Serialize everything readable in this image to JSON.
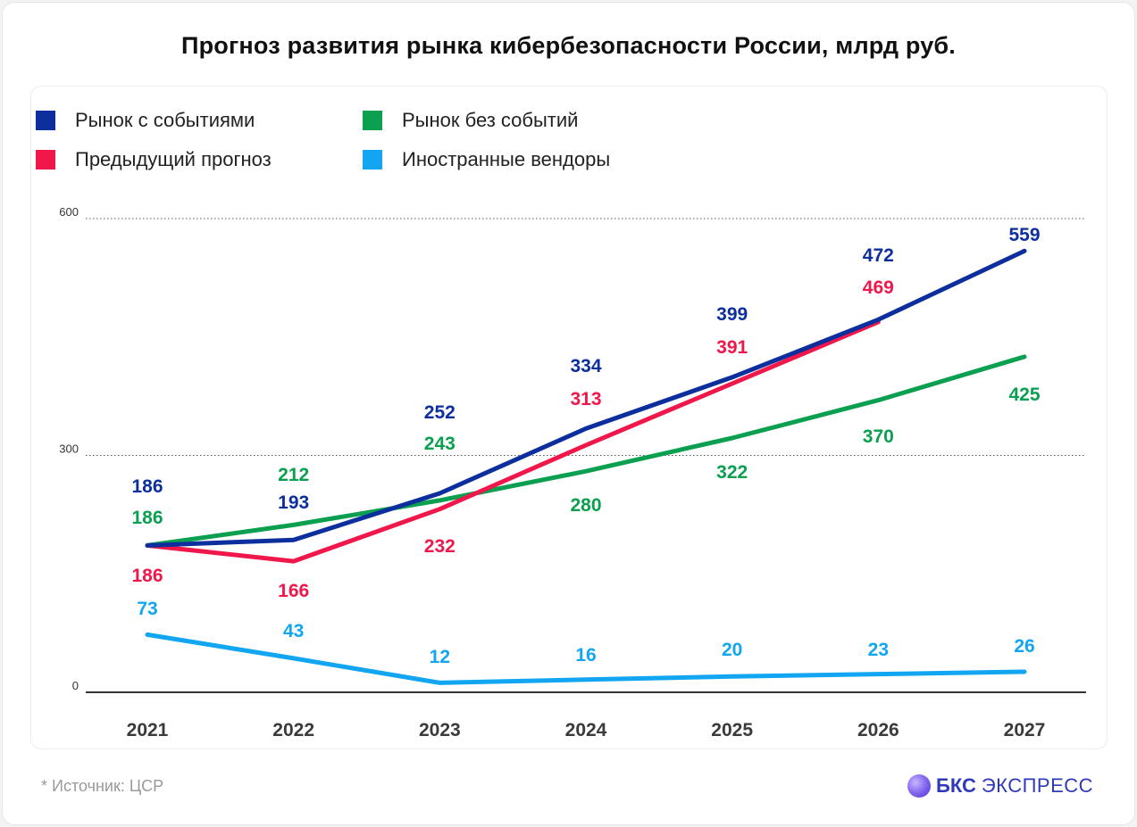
{
  "title": "Прогноз развития рынка кибербезопасности России, млрд руб.",
  "source": "*  Источник: ЦСР",
  "brand": {
    "bold": "БКС",
    "light": "ЭКСПРЕСС"
  },
  "legend": [
    {
      "label": "Рынок с событиями",
      "color": "#0d2f9e"
    },
    {
      "label": "Рынок без событий",
      "color": "#0aa04f"
    },
    {
      "label": "Предыдущий прогноз",
      "color": "#f0174b"
    },
    {
      "label": "Иностранные вендоры",
      "color": "#12a6f2"
    }
  ],
  "chart_data": {
    "type": "line",
    "title": "Прогноз развития рынка кибербезопасности России, млрд руб.",
    "categories": [
      "2021",
      "2022",
      "2023",
      "2024",
      "2025",
      "2026",
      "2027"
    ],
    "ylim": [
      0,
      600
    ],
    "yticks": [
      0,
      300,
      600
    ],
    "grid": "dotted at 300 and 600",
    "legend_position": "top-left",
    "series": [
      {
        "name": "Рынок с событиями",
        "color": "#0d2f9e",
        "values": [
          186,
          193,
          252,
          334,
          399,
          472,
          559
        ]
      },
      {
        "name": "Рынок без событий",
        "color": "#0aa04f",
        "values": [
          186,
          212,
          243,
          280,
          322,
          370,
          425
        ]
      },
      {
        "name": "Предыдущий прогноз",
        "color": "#f0174b",
        "values": [
          186,
          166,
          232,
          313,
          391,
          469,
          null
        ]
      },
      {
        "name": "Иностранные вендоры",
        "color": "#12a6f2",
        "values": [
          73,
          43,
          12,
          16,
          20,
          23,
          26
        ]
      }
    ]
  }
}
